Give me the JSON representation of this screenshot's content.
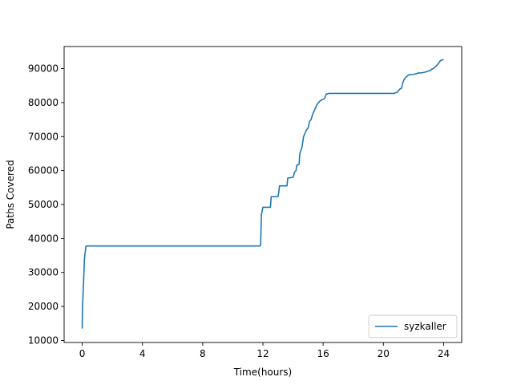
{
  "chart_data": {
    "type": "line",
    "title": "",
    "xlabel": "Time(hours)",
    "ylabel": "Paths Covered",
    "xlim": [
      -1.2,
      25.2
    ],
    "ylim": [
      9400,
      96500
    ],
    "xticks": [
      0,
      4,
      8,
      12,
      16,
      20,
      24
    ],
    "xtick_labels": [
      "0",
      "4",
      "8",
      "12",
      "16",
      "20",
      "24"
    ],
    "yticks": [
      10000,
      20000,
      30000,
      40000,
      50000,
      60000,
      70000,
      80000,
      90000
    ],
    "ytick_labels": [
      "10000",
      "20000",
      "30000",
      "40000",
      "50000",
      "60000",
      "70000",
      "80000",
      "90000"
    ],
    "grid": false,
    "legend_position": "lower right",
    "series": [
      {
        "name": "syzkaller",
        "color": "#1f77b4",
        "x": [
          0.0,
          0.02,
          0.05,
          0.1,
          0.15,
          0.2,
          0.25,
          0.3,
          0.5,
          2.0,
          6.0,
          10.0,
          11.8,
          11.85,
          11.9,
          12.0,
          12.1,
          12.5,
          12.55,
          13.0,
          13.05,
          13.1,
          13.6,
          13.65,
          14.0,
          14.1,
          14.2,
          14.25,
          14.4,
          14.45,
          14.6,
          14.7,
          14.75,
          14.85,
          14.9,
          15.0,
          15.1,
          15.2,
          15.3,
          15.4,
          15.5,
          15.6,
          15.7,
          15.8,
          15.9,
          16.0,
          16.1,
          16.2,
          16.4,
          16.6,
          16.75,
          16.8,
          17.5,
          19.0,
          20.5,
          20.75,
          20.8,
          20.9,
          21.0,
          21.1,
          21.2,
          21.3,
          21.4,
          21.5,
          21.7,
          22.0,
          22.2,
          22.3,
          22.6,
          22.8,
          23.0,
          23.1,
          23.2,
          23.3,
          23.4,
          23.5,
          23.6,
          23.7,
          23.8,
          24.0
        ],
        "y": [
          13500,
          20000,
          23000,
          28000,
          34000,
          36000,
          37800,
          37800,
          37800,
          37800,
          37800,
          37800,
          37800,
          38200,
          47000,
          49200,
          49200,
          49200,
          52300,
          52300,
          53500,
          55500,
          55500,
          57800,
          58000,
          59500,
          60000,
          61600,
          61800,
          65000,
          67000,
          70000,
          70500,
          71500,
          72000,
          72500,
          74500,
          75000,
          76500,
          77500,
          78500,
          79500,
          80000,
          80500,
          80800,
          81000,
          81200,
          82500,
          82700,
          82700,
          82700,
          82700,
          82700,
          82700,
          82700,
          82700,
          82900,
          83000,
          83500,
          84000,
          84200,
          86000,
          87000,
          87500,
          88200,
          88300,
          88500,
          88700,
          88800,
          89000,
          89300,
          89400,
          89800,
          90000,
          90300,
          90700,
          91200,
          91800,
          92400,
          92700
        ]
      }
    ]
  }
}
